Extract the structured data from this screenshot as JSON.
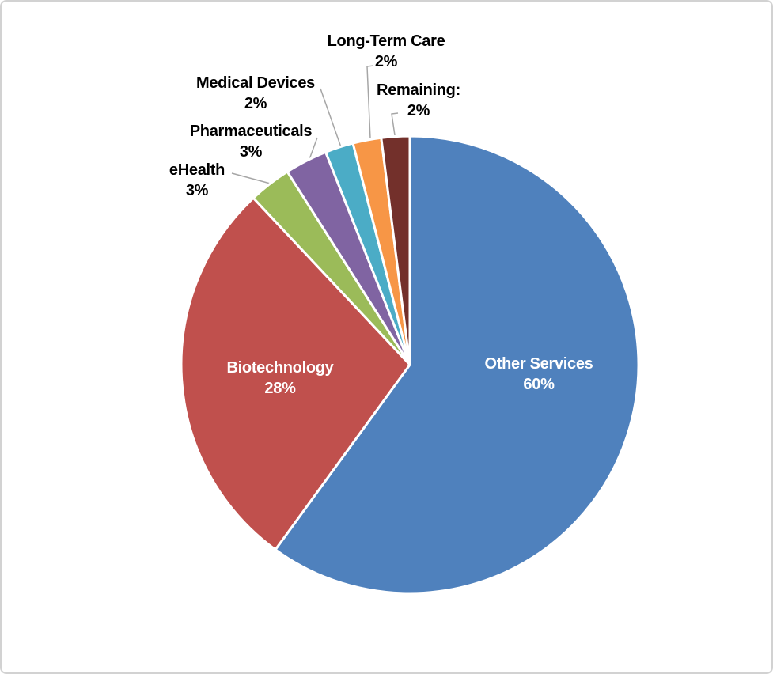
{
  "chart_data": {
    "type": "pie",
    "title": "",
    "start_angle_deg": 0,
    "direction": "clockwise",
    "legend": "none",
    "inside_label_color": "#FFFFFF",
    "outside_label_color": "#000000",
    "leader_line_color": "#A6A6A6",
    "slice_border_color": "#FFFFFF",
    "slices": [
      {
        "label": "Other Services",
        "value": 60,
        "pct_label": "60%",
        "color": "#4F81BD",
        "label_position": "inside"
      },
      {
        "label": "Biotechnology",
        "value": 28,
        "pct_label": "28%",
        "color": "#C0504D",
        "label_position": "inside"
      },
      {
        "label": "eHealth",
        "value": 3,
        "pct_label": "3%",
        "color": "#9BBB59",
        "label_position": "outside"
      },
      {
        "label": "Pharmaceuticals",
        "value": 3,
        "pct_label": "3%",
        "color": "#8064A2",
        "label_position": "outside"
      },
      {
        "label": "Medical Devices",
        "value": 2,
        "pct_label": "2%",
        "color": "#4BACC6",
        "label_position": "outside"
      },
      {
        "label": "Long-Term Care",
        "value": 2,
        "pct_label": "2%",
        "color": "#F79646",
        "label_position": "outside"
      },
      {
        "label": "Remaining:",
        "value": 2,
        "pct_label": "2%",
        "color": "#73302B",
        "label_position": "outside"
      }
    ]
  },
  "canvas": {
    "background": "#FFFFFF",
    "border_color": "#D2D2D2"
  }
}
